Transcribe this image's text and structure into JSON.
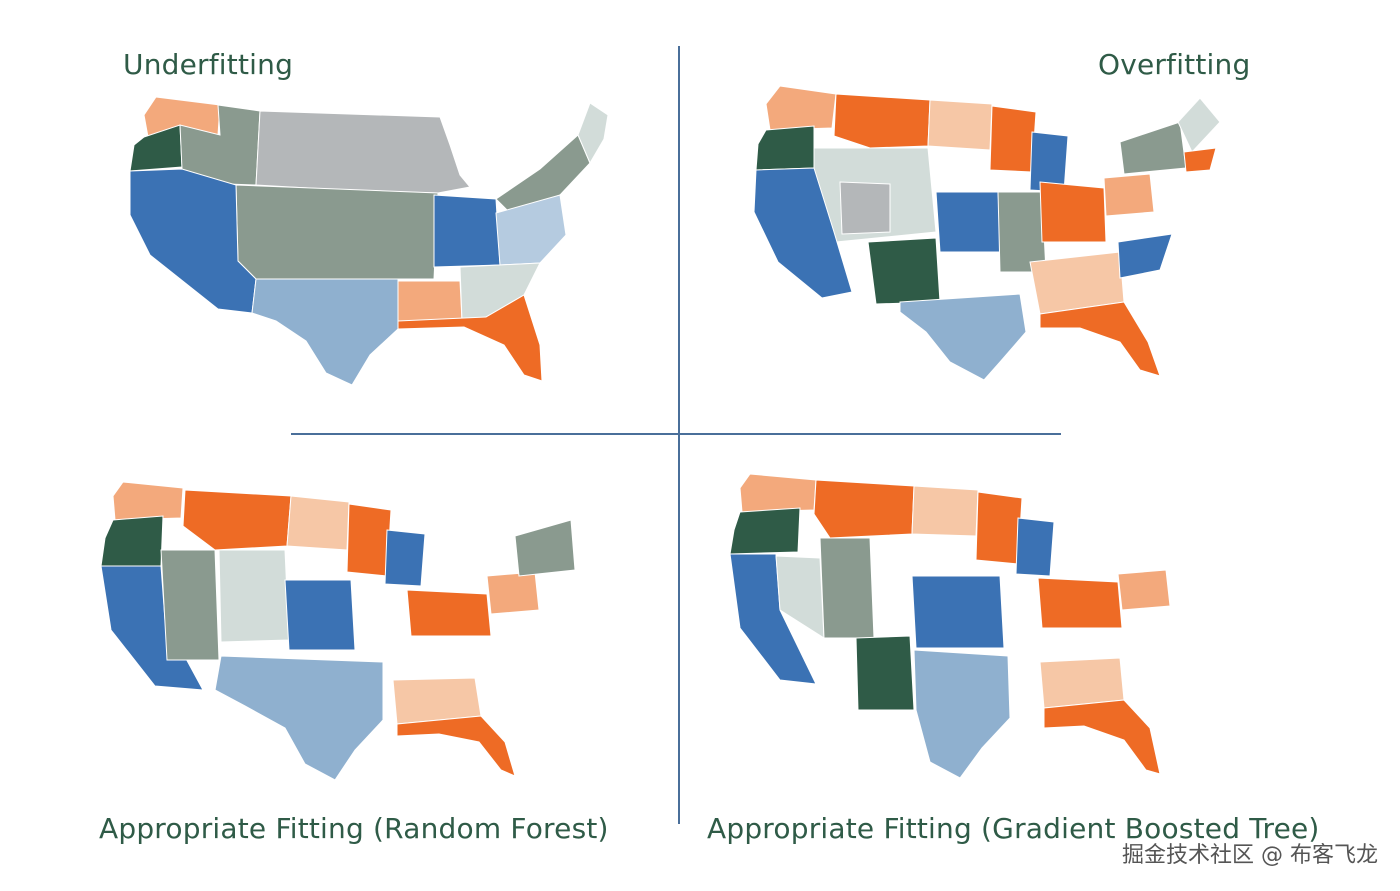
{
  "titles": {
    "underfitting": "Underfitting",
    "overfitting": "Overfitting",
    "random_forest": "Appropriate Fitting (Random Forest)",
    "gradient_boosted": "Appropriate Fitting (Gradient Boosted Tree)"
  },
  "watermark": "掘金技术社区 @ 布客飞龙",
  "colors": {
    "title": "#2f5b47",
    "divider": "#4a6f9a",
    "dark_green": "#2f5b47",
    "sage": "#8a9a8f",
    "gray": "#b4b7b9",
    "light_gray": "#d2dcd9",
    "blue": "#3b72b4",
    "light_blue": "#8fb0cf",
    "pale_blue": "#b5cbe0",
    "orange": "#ee6b25",
    "light_orange": "#f3a97c",
    "peach": "#f6c7a6"
  },
  "regions": {
    "underfitting": [
      {
        "name": "wa-orange",
        "color": "light_orange"
      },
      {
        "name": "or-dark",
        "color": "dark_green"
      },
      {
        "name": "west-sage",
        "color": "sage"
      },
      {
        "name": "plains-gray",
        "color": "gray"
      },
      {
        "name": "central-sage",
        "color": "sage"
      },
      {
        "name": "southwest-blue",
        "color": "blue"
      },
      {
        "name": "ohio-blue",
        "color": "blue"
      },
      {
        "name": "texas-lightblue",
        "color": "light_blue"
      },
      {
        "name": "northeast-sage",
        "color": "sage"
      },
      {
        "name": "maine-light",
        "color": "light_gray"
      },
      {
        "name": "mid-atlantic",
        "color": "pale_blue"
      },
      {
        "name": "south-peach",
        "color": "light_orange"
      },
      {
        "name": "southeast-light",
        "color": "light_gray"
      },
      {
        "name": "florida-orange",
        "color": "orange"
      }
    ],
    "overfitting": [
      {
        "name": "wa",
        "color": "light_orange"
      },
      {
        "name": "or",
        "color": "dark_green"
      },
      {
        "name": "ca-nv",
        "color": "blue"
      },
      {
        "name": "mt",
        "color": "orange"
      },
      {
        "name": "nd",
        "color": "peach"
      },
      {
        "name": "mn",
        "color": "orange"
      },
      {
        "name": "wi",
        "color": "blue"
      },
      {
        "name": "mountain",
        "color": "light_gray"
      },
      {
        "name": "ut",
        "color": "gray"
      },
      {
        "name": "nm",
        "color": "dark_green"
      },
      {
        "name": "tx",
        "color": "light_blue"
      },
      {
        "name": "ks",
        "color": "blue"
      },
      {
        "name": "mo",
        "color": "sage"
      },
      {
        "name": "in-oh",
        "color": "orange"
      },
      {
        "name": "pa",
        "color": "light_orange"
      },
      {
        "name": "ny",
        "color": "sage"
      },
      {
        "name": "me",
        "color": "light_gray"
      },
      {
        "name": "ma",
        "color": "orange"
      },
      {
        "name": "southeast",
        "color": "peach"
      },
      {
        "name": "nc",
        "color": "blue"
      },
      {
        "name": "fl",
        "color": "orange"
      }
    ],
    "random_forest": [
      {
        "name": "wa",
        "color": "light_orange"
      },
      {
        "name": "or",
        "color": "dark_green"
      },
      {
        "name": "ca",
        "color": "blue"
      },
      {
        "name": "mt",
        "color": "orange"
      },
      {
        "name": "nd",
        "color": "peach"
      },
      {
        "name": "mn",
        "color": "orange"
      },
      {
        "name": "wi",
        "color": "blue"
      },
      {
        "name": "co",
        "color": "light_gray"
      },
      {
        "name": "ks",
        "color": "blue"
      },
      {
        "name": "tx",
        "color": "light_blue"
      },
      {
        "name": "in-oh",
        "color": "orange"
      },
      {
        "name": "pa",
        "color": "light_orange"
      },
      {
        "name": "southeast",
        "color": "peach"
      },
      {
        "name": "fl",
        "color": "orange"
      },
      {
        "name": "ne",
        "color": "sage"
      }
    ],
    "gradient_boosted": [
      {
        "name": "wa",
        "color": "light_orange"
      },
      {
        "name": "or",
        "color": "dark_green"
      },
      {
        "name": "ca",
        "color": "blue"
      },
      {
        "name": "mt",
        "color": "orange"
      },
      {
        "name": "nd",
        "color": "peach"
      },
      {
        "name": "mn",
        "color": "orange"
      },
      {
        "name": "wi",
        "color": "blue"
      },
      {
        "name": "nv",
        "color": "light_gray"
      },
      {
        "name": "nm",
        "color": "dark_green"
      },
      {
        "name": "ks",
        "color": "blue"
      },
      {
        "name": "tx",
        "color": "light_blue"
      },
      {
        "name": "in-oh",
        "color": "orange"
      },
      {
        "name": "pa",
        "color": "light_orange"
      },
      {
        "name": "southeast",
        "color": "peach"
      },
      {
        "name": "fl",
        "color": "orange"
      },
      {
        "name": "ne",
        "color": "sage"
      }
    ]
  }
}
